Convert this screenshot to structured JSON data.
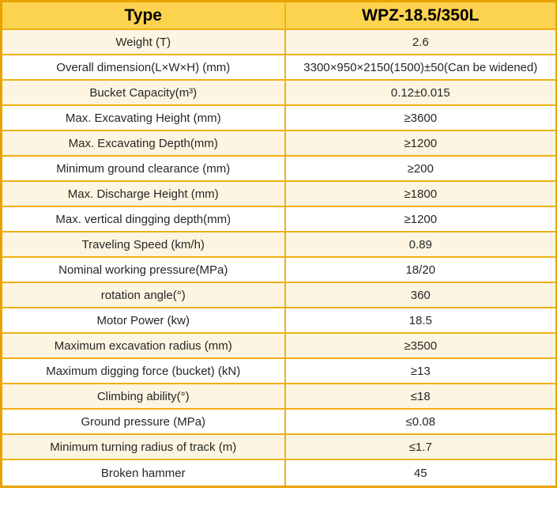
{
  "table": {
    "header": {
      "col1": "Type",
      "col2": "WPZ-18.5/350L"
    },
    "rows": [
      {
        "label": "Weight (T)",
        "value": "2.6"
      },
      {
        "label": "Overall dimension(L×W×H) (mm)",
        "value": "3300×950×2150(1500)±50(Can be widened)"
      },
      {
        "label": "Bucket Capacity(m³)",
        "value": "0.12±0.015"
      },
      {
        "label": "Max. Excavating Height (mm)",
        "value": "≥3600"
      },
      {
        "label": "Max. Excavating Depth(mm)",
        "value": "≥1200"
      },
      {
        "label": "Minimum ground clearance (mm)",
        "value": "≥200"
      },
      {
        "label": "Max. Discharge Height (mm)",
        "value": "≥1800"
      },
      {
        "label": "Max. vertical dingging depth(mm)",
        "value": "≥1200"
      },
      {
        "label": "Traveling Speed (km/h)",
        "value": "0.89"
      },
      {
        "label": "Nominal working pressure(MPa)",
        "value": "18/20"
      },
      {
        "label": "rotation angle(°)",
        "value": "360"
      },
      {
        "label": "Motor Power (kw)",
        "value": "18.5"
      },
      {
        "label": "Maximum excavation radius (mm)",
        "value": "≥3500"
      },
      {
        "label": "Maximum digging force (bucket) (kN)",
        "value": "≥13"
      },
      {
        "label": "Climbing ability(°)",
        "value": "≤18"
      },
      {
        "label": "Ground pressure (MPa)",
        "value": "≤0.08"
      },
      {
        "label": "Minimum turning radius of track (m)",
        "value": "≤1.7"
      },
      {
        "label": "Broken hammer",
        "value": "45"
      }
    ],
    "colors": {
      "header_bg": "#FBD34F",
      "alt_row_bg": "#FDF5E1",
      "row_bg": "#FFFFFF",
      "grid_border": "#F0B013",
      "outer_border": "#E9A200",
      "header_text": "#000000",
      "body_text": "#262626"
    }
  }
}
